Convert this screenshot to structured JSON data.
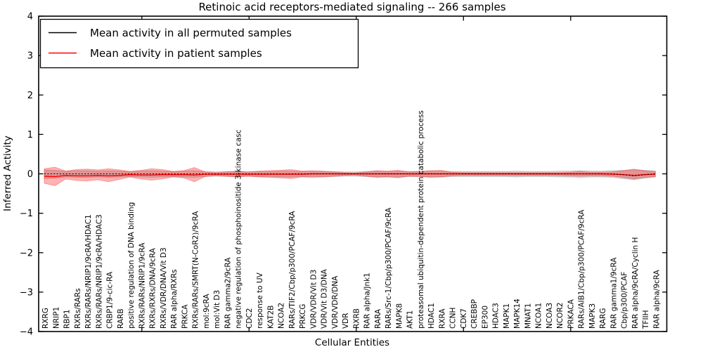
{
  "figure": {
    "title": "Retinoic acid receptors-mediated signaling -- 266 samples",
    "xlabel": "Cellular Entities",
    "ylabel": "Inferred Activity"
  },
  "legend": {
    "position": "upper left",
    "entries": [
      {
        "label": "Mean activity in all permuted samples",
        "color": "#000000"
      },
      {
        "label": "Mean activity in patient samples",
        "color": "#ff0000"
      }
    ]
  },
  "chart_data": {
    "type": "line",
    "title": "Retinoic acid receptors-mediated signaling -- 266 samples",
    "xlabel": "Cellular Entities",
    "ylabel": "Inferred Activity",
    "ylim": [
      -4,
      4
    ],
    "yticks": [
      4,
      3,
      2,
      1,
      0,
      -1,
      -2,
      -3,
      -4
    ],
    "ytick_labels": [
      "4",
      "3",
      "2",
      "1",
      "0",
      "−1",
      "−2",
      "−3",
      "−4"
    ],
    "x_tick_label_rotation": 90,
    "grid": false,
    "legend_position": "upper left",
    "categories": [
      "RXRG",
      "NRIP1",
      "RBP1",
      "RXRs/RARs",
      "RXRs/RARs/NRIP1/9cRA/HDAC1",
      "RXRs/RARs/NRIP1/9cRA/HDAC3",
      "CRBP1/9-cic-RA",
      "RARB",
      "positive regulation of DNA binding",
      "RXRs/RARs/NRIP1/9cRA",
      "RXRs/RXRs/DNA/9cRA",
      "RXRs/VDR/DNA/Vit D3",
      "RAR alpha/RXRs",
      "PRKCA",
      "RXRs/RARs/SMRT(N-CoR2)/9cRA",
      "mol:9cRA",
      "mol:Vit D3",
      "RAR gamma2/9cRA",
      "negative regulation of phosphoinositide 3-kinase casc",
      "CDC2",
      "response to UV",
      "KAT2B",
      "NCOA2",
      "RARs/TIF2/Cbp/p300/PCAF/9cRA",
      "PRKCG",
      "VDR/VDR/Vit D3",
      "VDR/Vit D3/DNA",
      "VDR/VDR/DNA",
      "VDR",
      "RXRB",
      "RAR alpha/Jnk1",
      "RARA",
      "RARs/Src-1/Cbp/p300/PCAF/9cRA",
      "MAPK8",
      "AKT1",
      "proteasomal ubiquitin-dependent protein catabolic process",
      "HDAC1",
      "RXRA",
      "CCNH",
      "CDK7",
      "CREBBP",
      "EP300",
      "HDAC3",
      "MAPK1",
      "MAPK14",
      "MNAT1",
      "NCOA1",
      "NCOA3",
      "NCOR2",
      "PRKACA",
      "RARs/AIB1/Cbp/p300/PCAF/9cRA",
      "MAPK3",
      "RARG",
      "RAR gamma1/9cRA",
      "Cbp/p300/PCAF",
      "RAR alpha/9cRA/Cyclin H",
      "TFIIH",
      "RAR alpha/9cRA"
    ],
    "series": [
      {
        "name": "Mean activity in all permuted samples",
        "color": "#000000",
        "style": "line",
        "values": [
          0,
          0,
          0,
          0,
          0,
          0,
          0,
          0,
          0,
          0,
          0,
          0,
          0,
          0,
          0,
          0,
          0,
          0,
          0,
          0,
          0,
          0,
          0,
          0,
          0,
          0,
          0,
          0,
          0,
          0,
          0,
          0,
          0,
          0,
          0,
          0,
          0,
          0,
          0,
          0,
          0,
          0,
          0,
          0,
          0,
          0,
          0,
          0,
          0,
          0,
          0,
          0,
          0,
          0,
          -0.02,
          -0.05,
          -0.02,
          0
        ]
      },
      {
        "name": "Mean activity in patient samples",
        "color": "#ff0000",
        "style": "line",
        "values": [
          -0.06,
          -0.07,
          -0.04,
          -0.05,
          -0.05,
          -0.04,
          -0.05,
          -0.04,
          -0.02,
          -0.03,
          -0.03,
          -0.02,
          -0.02,
          -0.02,
          -0.03,
          -0.01,
          -0.01,
          -0.01,
          -0.01,
          -0.01,
          -0.01,
          -0.01,
          -0.01,
          -0.01,
          -0.01,
          0,
          0,
          0,
          0,
          0,
          0,
          0,
          0,
          0,
          0,
          0,
          0,
          0,
          0,
          0,
          0,
          0,
          0,
          0,
          0,
          0,
          0,
          0,
          0,
          0,
          0,
          0,
          0,
          -0.01,
          -0.02,
          -0.04,
          -0.02,
          -0.01
        ]
      }
    ],
    "bands": [
      {
        "name": "permuted-samples-range",
        "color": "rgba(0,0,0,0.16)",
        "upper": [
          0.1,
          0.09,
          0.07,
          0.08,
          0.08,
          0.07,
          0.08,
          0.07,
          0.06,
          0.07,
          0.08,
          0.07,
          0.06,
          0.07,
          0.08,
          0.06,
          0.05,
          0.06,
          0.06,
          0.05,
          0.06,
          0.06,
          0.07,
          0.07,
          0.06,
          0.06,
          0.06,
          0.06,
          0.05,
          0.05,
          0.06,
          0.07,
          0.06,
          0.07,
          0.06,
          0.06,
          0.07,
          0.07,
          0.06,
          0.06,
          0.06,
          0.06,
          0.06,
          0.06,
          0.07,
          0.06,
          0.06,
          0.06,
          0.07,
          0.07,
          0.08,
          0.07,
          0.07,
          0.08,
          0.09,
          0.1,
          0.09,
          0.07
        ],
        "lower": [
          -0.12,
          -0.11,
          -0.08,
          -0.09,
          -0.09,
          -0.08,
          -0.09,
          -0.08,
          -0.07,
          -0.08,
          -0.09,
          -0.08,
          -0.07,
          -0.08,
          -0.09,
          -0.07,
          -0.06,
          -0.07,
          -0.07,
          -0.06,
          -0.07,
          -0.07,
          -0.08,
          -0.08,
          -0.07,
          -0.07,
          -0.07,
          -0.07,
          -0.06,
          -0.06,
          -0.07,
          -0.08,
          -0.07,
          -0.08,
          -0.07,
          -0.07,
          -0.08,
          -0.08,
          -0.07,
          -0.07,
          -0.07,
          -0.07,
          -0.07,
          -0.07,
          -0.08,
          -0.07,
          -0.07,
          -0.07,
          -0.08,
          -0.08,
          -0.09,
          -0.08,
          -0.08,
          -0.09,
          -0.12,
          -0.15,
          -0.11,
          -0.08
        ]
      },
      {
        "name": "patient-samples-range",
        "color": "rgba(255,0,0,0.30)",
        "upper": [
          0.13,
          0.17,
          0.07,
          0.11,
          0.12,
          0.1,
          0.13,
          0.1,
          0.06,
          0.09,
          0.13,
          0.11,
          0.06,
          0.08,
          0.16,
          0.05,
          0.03,
          0.05,
          0.07,
          0.05,
          0.07,
          0.08,
          0.09,
          0.11,
          0.07,
          0.08,
          0.07,
          0.05,
          0.03,
          0.02,
          0.05,
          0.08,
          0.07,
          0.09,
          0.05,
          0.06,
          0.08,
          0.09,
          0.04,
          0.03,
          0.03,
          0.03,
          0.03,
          0.03,
          0.03,
          0.03,
          0.03,
          0.03,
          0.03,
          0.04,
          0.06,
          0.04,
          0.04,
          0.05,
          0.08,
          0.12,
          0.08,
          0.06
        ],
        "lower": [
          -0.24,
          -0.3,
          -0.13,
          -0.17,
          -0.18,
          -0.15,
          -0.2,
          -0.14,
          -0.08,
          -0.13,
          -0.16,
          -0.13,
          -0.08,
          -0.1,
          -0.2,
          -0.07,
          -0.04,
          -0.06,
          -0.08,
          -0.06,
          -0.08,
          -0.09,
          -0.1,
          -0.12,
          -0.08,
          -0.09,
          -0.08,
          -0.06,
          -0.04,
          -0.03,
          -0.06,
          -0.09,
          -0.08,
          -0.1,
          -0.06,
          -0.07,
          -0.09,
          -0.08,
          -0.05,
          -0.04,
          -0.04,
          -0.04,
          -0.04,
          -0.04,
          -0.04,
          -0.04,
          -0.04,
          -0.04,
          -0.04,
          -0.05,
          -0.06,
          -0.05,
          -0.05,
          -0.06,
          -0.09,
          -0.13,
          -0.09,
          -0.07
        ]
      }
    ]
  }
}
